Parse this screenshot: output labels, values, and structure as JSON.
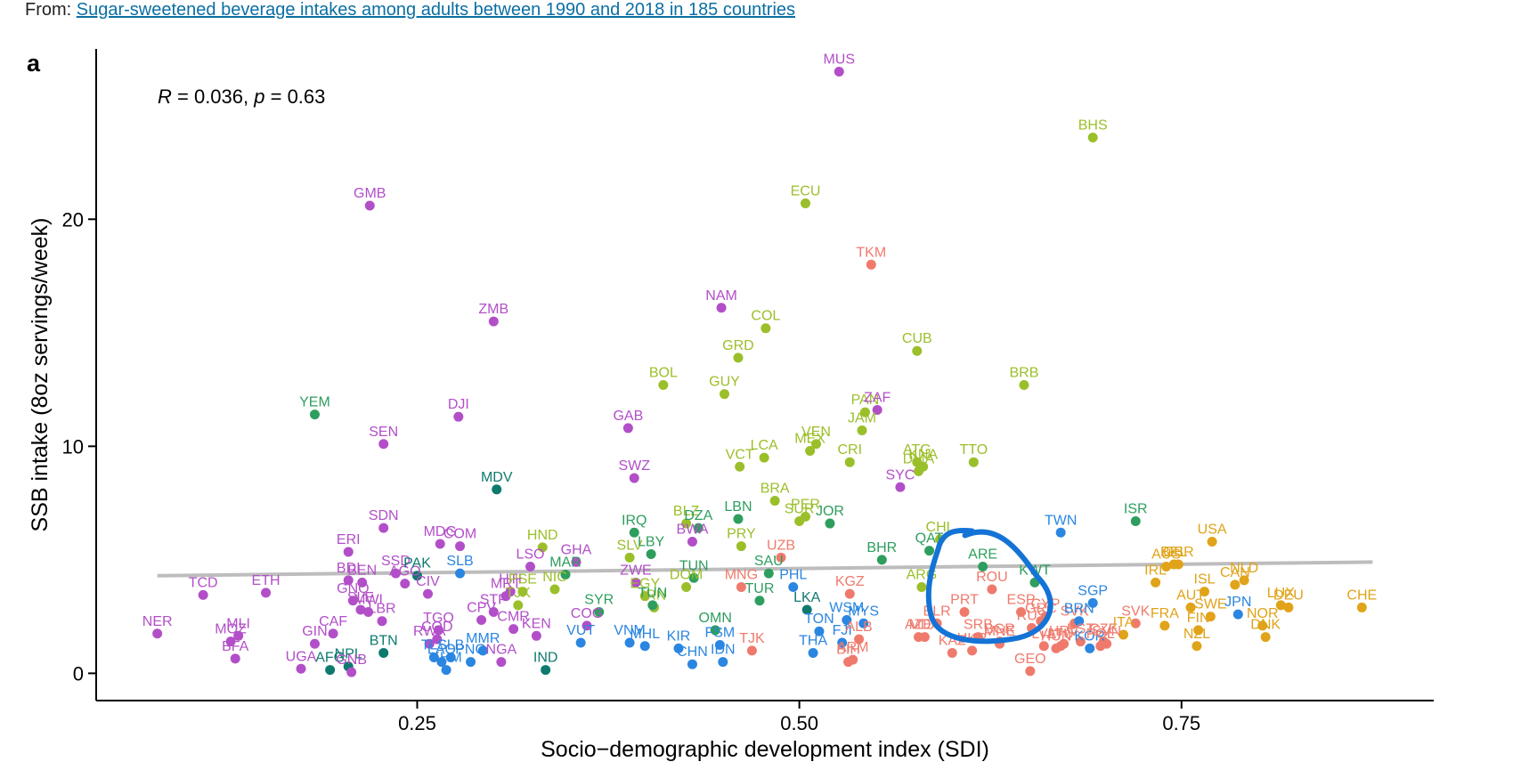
{
  "source": {
    "prefix": "From: ",
    "link_text": "Sugar-sweetened beverage intakes among adults between 1990 and 2018 in 185 countries"
  },
  "colors": {
    "purple": "#b24fc8",
    "green": "#9bbf2a",
    "seagreen": "#2e9e5e",
    "teal": "#0e7a6e",
    "blue": "#2a86e0",
    "salmon": "#ef7a6c",
    "gold": "#e0a319",
    "trend": "#bdbdbd",
    "annotation": "#1473d6"
  },
  "chart_data": {
    "type": "scatter",
    "panel_tag": "a",
    "stats_text": {
      "r_symbol": "R",
      "r_value": " = 0.036, ",
      "p_symbol": "p",
      "p_value": " = 0.63"
    },
    "xlabel": "Socio−demographic development index (SDI)",
    "ylabel": "SSB intake (8oz servings/week)",
    "xlim": [
      0.04,
      0.915
    ],
    "ylim": [
      -1.2,
      27.5
    ],
    "xticks": [
      0.25,
      0.5,
      0.75
    ],
    "xtick_labels": [
      "0.25",
      "0.50",
      "0.75"
    ],
    "yticks": [
      0,
      10,
      20
    ],
    "ytick_labels": [
      "0",
      "10",
      "20"
    ],
    "trendline": {
      "x": [
        0.08,
        0.875
      ],
      "y": [
        4.3,
        4.9
      ]
    },
    "annotation": {
      "shape": "hand-drawn circle",
      "around": "ARE"
    },
    "points": [
      {
        "l": "NER",
        "x": 0.08,
        "y": 1.75,
        "c": "purple"
      },
      {
        "l": "TCD",
        "x": 0.11,
        "y": 3.45,
        "c": "purple"
      },
      {
        "l": "MOZ",
        "x": 0.128,
        "y": 1.4,
        "c": "purple"
      },
      {
        "l": "MLI",
        "x": 0.133,
        "y": 1.65,
        "c": "purple"
      },
      {
        "l": "BFA",
        "x": 0.131,
        "y": 0.65,
        "c": "purple"
      },
      {
        "l": "ETH",
        "x": 0.151,
        "y": 3.55,
        "c": "purple"
      },
      {
        "l": "UGA",
        "x": 0.174,
        "y": 0.2,
        "c": "purple"
      },
      {
        "l": "YEM",
        "x": 0.183,
        "y": 11.4,
        "c": "seagreen"
      },
      {
        "l": "GIN",
        "x": 0.183,
        "y": 1.3,
        "c": "purple"
      },
      {
        "l": "AFG",
        "x": 0.193,
        "y": 0.15,
        "c": "teal"
      },
      {
        "l": "CAF",
        "x": 0.195,
        "y": 1.75,
        "c": "purple"
      },
      {
        "l": "NPL",
        "x": 0.205,
        "y": 0.3,
        "c": "teal"
      },
      {
        "l": "GNB",
        "x": 0.207,
        "y": 0.05,
        "c": "purple"
      },
      {
        "l": "ERI",
        "x": 0.205,
        "y": 5.35,
        "c": "purple"
      },
      {
        "l": "BDI",
        "x": 0.205,
        "y": 4.1,
        "c": "purple"
      },
      {
        "l": "BEN",
        "x": 0.214,
        "y": 4.0,
        "c": "purple"
      },
      {
        "l": "GNQ",
        "x": 0.208,
        "y": 3.2,
        "c": "purple"
      },
      {
        "l": "SLE",
        "x": 0.213,
        "y": 2.8,
        "c": "purple"
      },
      {
        "l": "MWI",
        "x": 0.218,
        "y": 2.7,
        "c": "purple"
      },
      {
        "l": "GMB",
        "x": 0.219,
        "y": 20.6,
        "c": "purple"
      },
      {
        "l": "LBR",
        "x": 0.227,
        "y": 2.3,
        "c": "purple"
      },
      {
        "l": "SEN",
        "x": 0.228,
        "y": 10.1,
        "c": "purple"
      },
      {
        "l": "SDN",
        "x": 0.228,
        "y": 6.4,
        "c": "purple"
      },
      {
        "l": "BTN",
        "x": 0.228,
        "y": 0.9,
        "c": "teal"
      },
      {
        "l": "SSD",
        "x": 0.236,
        "y": 4.4,
        "c": "purple"
      },
      {
        "l": "AGO",
        "x": 0.242,
        "y": 3.95,
        "c": "purple"
      },
      {
        "l": "PAK",
        "x": 0.25,
        "y": 4.3,
        "c": "teal"
      },
      {
        "l": "CIV",
        "x": 0.257,
        "y": 3.5,
        "c": "purple"
      },
      {
        "l": "TGO",
        "x": 0.264,
        "y": 1.9,
        "c": "purple"
      },
      {
        "l": "COD",
        "x": 0.263,
        "y": 1.5,
        "c": "purple"
      },
      {
        "l": "RWA",
        "x": 0.258,
        "y": 1.3,
        "c": "purple"
      },
      {
        "l": "TLS",
        "x": 0.261,
        "y": 0.7,
        "c": "blue"
      },
      {
        "l": "LAO",
        "x": 0.266,
        "y": 0.5,
        "c": "blue"
      },
      {
        "l": "SLB",
        "x": 0.272,
        "y": 0.7,
        "c": "blue"
      },
      {
        "l": "KHM",
        "x": 0.269,
        "y": 0.15,
        "c": "blue"
      },
      {
        "l": "MDG",
        "x": 0.265,
        "y": 5.7,
        "c": "purple"
      },
      {
        "l": "COM",
        "x": 0.278,
        "y": 5.6,
        "c": "purple"
      },
      {
        "l": "SLB",
        "x": 0.278,
        "y": 4.4,
        "c": "blue"
      },
      {
        "l": "DJI",
        "x": 0.277,
        "y": 11.3,
        "c": "purple"
      },
      {
        "l": "PNG",
        "x": 0.285,
        "y": 0.5,
        "c": "blue"
      },
      {
        "l": "MMR",
        "x": 0.293,
        "y": 1.0,
        "c": "blue"
      },
      {
        "l": "CPV",
        "x": 0.292,
        "y": 2.35,
        "c": "purple"
      },
      {
        "l": "STP",
        "x": 0.3,
        "y": 2.7,
        "c": "purple"
      },
      {
        "l": "ZMB",
        "x": 0.3,
        "y": 15.5,
        "c": "purple"
      },
      {
        "l": "MDV",
        "x": 0.302,
        "y": 8.1,
        "c": "teal"
      },
      {
        "l": "NGA",
        "x": 0.305,
        "y": 0.5,
        "c": "purple"
      },
      {
        "l": "CMR",
        "x": 0.313,
        "y": 1.95,
        "c": "purple"
      },
      {
        "l": "MRT",
        "x": 0.308,
        "y": 3.4,
        "c": "purple"
      },
      {
        "l": "HTI",
        "x": 0.311,
        "y": 3.6,
        "c": "purple"
      },
      {
        "l": "PSE",
        "x": 0.319,
        "y": 3.6,
        "c": "green"
      },
      {
        "l": "TJK",
        "x": 0.316,
        "y": 3.0,
        "c": "green"
      },
      {
        "l": "KEN",
        "x": 0.328,
        "y": 1.65,
        "c": "purple"
      },
      {
        "l": "LSO",
        "x": 0.324,
        "y": 4.7,
        "c": "purple"
      },
      {
        "l": "HND",
        "x": 0.332,
        "y": 5.55,
        "c": "green"
      },
      {
        "l": "IND",
        "x": 0.334,
        "y": 0.15,
        "c": "teal"
      },
      {
        "l": "NIC",
        "x": 0.34,
        "y": 3.7,
        "c": "green"
      },
      {
        "l": "MAR",
        "x": 0.347,
        "y": 4.35,
        "c": "seagreen"
      },
      {
        "l": "GHA",
        "x": 0.354,
        "y": 4.9,
        "c": "purple"
      },
      {
        "l": "VUT",
        "x": 0.357,
        "y": 1.35,
        "c": "blue"
      },
      {
        "l": "COG",
        "x": 0.361,
        "y": 2.1,
        "c": "purple"
      },
      {
        "l": "SYR",
        "x": 0.369,
        "y": 2.7,
        "c": "seagreen"
      },
      {
        "l": "VNM",
        "x": 0.389,
        "y": 1.35,
        "c": "blue"
      },
      {
        "l": "MHL",
        "x": 0.399,
        "y": 1.2,
        "c": "blue"
      },
      {
        "l": "GAB",
        "x": 0.388,
        "y": 10.8,
        "c": "purple"
      },
      {
        "l": "SWZ",
        "x": 0.392,
        "y": 8.6,
        "c": "purple"
      },
      {
        "l": "IRQ",
        "x": 0.392,
        "y": 6.2,
        "c": "seagreen"
      },
      {
        "l": "SLV",
        "x": 0.389,
        "y": 5.1,
        "c": "green"
      },
      {
        "l": "ZWE",
        "x": 0.393,
        "y": 4.0,
        "c": "purple"
      },
      {
        "l": "EGY",
        "x": 0.399,
        "y": 3.4,
        "c": "green"
      },
      {
        "l": "IRN",
        "x": 0.405,
        "y": 2.9,
        "c": "green"
      },
      {
        "l": "TUN",
        "x": 0.404,
        "y": 3.0,
        "c": "seagreen"
      },
      {
        "l": "LBY",
        "x": 0.403,
        "y": 5.25,
        "c": "seagreen"
      },
      {
        "l": "BOL",
        "x": 0.411,
        "y": 12.7,
        "c": "green"
      },
      {
        "l": "KIR",
        "x": 0.421,
        "y": 1.1,
        "c": "blue"
      },
      {
        "l": "CHN",
        "x": 0.43,
        "y": 0.4,
        "c": "blue"
      },
      {
        "l": "DOM",
        "x": 0.426,
        "y": 3.8,
        "c": "green"
      },
      {
        "l": "TUN",
        "x": 0.431,
        "y": 4.2,
        "c": "seagreen"
      },
      {
        "l": "BLZ",
        "x": 0.426,
        "y": 6.6,
        "c": "green"
      },
      {
        "l": "DZA",
        "x": 0.434,
        "y": 6.4,
        "c": "seagreen"
      },
      {
        "l": "BWA",
        "x": 0.43,
        "y": 5.8,
        "c": "purple"
      },
      {
        "l": "OMN",
        "x": 0.445,
        "y": 1.9,
        "c": "seagreen"
      },
      {
        "l": "FSM",
        "x": 0.448,
        "y": 1.25,
        "c": "blue"
      },
      {
        "l": "IDN",
        "x": 0.45,
        "y": 0.5,
        "c": "blue"
      },
      {
        "l": "NAM",
        "x": 0.449,
        "y": 16.1,
        "c": "purple"
      },
      {
        "l": "GUY",
        "x": 0.451,
        "y": 12.3,
        "c": "green"
      },
      {
        "l": "GRD",
        "x": 0.46,
        "y": 13.9,
        "c": "green"
      },
      {
        "l": "MNG",
        "x": 0.462,
        "y": 3.8,
        "c": "salmon"
      },
      {
        "l": "TJK",
        "x": 0.469,
        "y": 1.0,
        "c": "salmon"
      },
      {
        "l": "LBN",
        "x": 0.46,
        "y": 6.8,
        "c": "seagreen"
      },
      {
        "l": "PRY",
        "x": 0.462,
        "y": 5.6,
        "c": "green"
      },
      {
        "l": "VCT",
        "x": 0.461,
        "y": 9.1,
        "c": "green"
      },
      {
        "l": "TUR",
        "x": 0.474,
        "y": 3.2,
        "c": "seagreen"
      },
      {
        "l": "SAU",
        "x": 0.48,
        "y": 4.4,
        "c": "seagreen"
      },
      {
        "l": "COL",
        "x": 0.478,
        "y": 15.2,
        "c": "green"
      },
      {
        "l": "LCA",
        "x": 0.477,
        "y": 9.5,
        "c": "green"
      },
      {
        "l": "BRA",
        "x": 0.484,
        "y": 7.6,
        "c": "green"
      },
      {
        "l": "UZB",
        "x": 0.488,
        "y": 5.1,
        "c": "salmon"
      },
      {
        "l": "PHL",
        "x": 0.496,
        "y": 3.8,
        "c": "blue"
      },
      {
        "l": "SUR",
        "x": 0.5,
        "y": 6.7,
        "c": "green"
      },
      {
        "l": "PER",
        "x": 0.504,
        "y": 6.9,
        "c": "green"
      },
      {
        "l": "LKA",
        "x": 0.505,
        "y": 2.8,
        "c": "teal"
      },
      {
        "l": "ECU",
        "x": 0.504,
        "y": 20.7,
        "c": "green"
      },
      {
        "l": "MEX",
        "x": 0.507,
        "y": 9.8,
        "c": "green"
      },
      {
        "l": "VEN",
        "x": 0.511,
        "y": 10.1,
        "c": "green"
      },
      {
        "l": "THA",
        "x": 0.509,
        "y": 0.9,
        "c": "blue"
      },
      {
        "l": "TON",
        "x": 0.513,
        "y": 1.85,
        "c": "blue"
      },
      {
        "l": "JOR",
        "x": 0.52,
        "y": 6.6,
        "c": "seagreen"
      },
      {
        "l": "MUS",
        "x": 0.526,
        "y": 26.5,
        "c": "purple"
      },
      {
        "l": "FJI",
        "x": 0.528,
        "y": 1.35,
        "c": "blue"
      },
      {
        "l": "WSM",
        "x": 0.531,
        "y": 2.35,
        "c": "blue"
      },
      {
        "l": "MYS",
        "x": 0.542,
        "y": 2.2,
        "c": "blue"
      },
      {
        "l": "KGZ",
        "x": 0.533,
        "y": 3.5,
        "c": "salmon"
      },
      {
        "l": "ALB",
        "x": 0.539,
        "y": 1.5,
        "c": "salmon"
      },
      {
        "l": "ARM",
        "x": 0.535,
        "y": 0.6,
        "c": "salmon"
      },
      {
        "l": "BIH",
        "x": 0.532,
        "y": 0.5,
        "c": "salmon"
      },
      {
        "l": "CRI",
        "x": 0.533,
        "y": 9.3,
        "c": "green"
      },
      {
        "l": "JAM",
        "x": 0.541,
        "y": 10.7,
        "c": "green"
      },
      {
        "l": "PAN",
        "x": 0.543,
        "y": 11.5,
        "c": "green"
      },
      {
        "l": "ZAF",
        "x": 0.551,
        "y": 11.6,
        "c": "purple"
      },
      {
        "l": "TKM",
        "x": 0.547,
        "y": 18.0,
        "c": "salmon"
      },
      {
        "l": "BHR",
        "x": 0.554,
        "y": 5.0,
        "c": "seagreen"
      },
      {
        "l": "SYC",
        "x": 0.566,
        "y": 8.2,
        "c": "purple"
      },
      {
        "l": "CUB",
        "x": 0.577,
        "y": 14.2,
        "c": "green"
      },
      {
        "l": "ATG",
        "x": 0.577,
        "y": 9.3,
        "c": "green"
      },
      {
        "l": "KNA",
        "x": 0.581,
        "y": 9.1,
        "c": "green"
      },
      {
        "l": "DMA",
        "x": 0.578,
        "y": 8.9,
        "c": "green"
      },
      {
        "l": "ARG",
        "x": 0.58,
        "y": 3.8,
        "c": "green"
      },
      {
        "l": "QAT",
        "x": 0.585,
        "y": 5.4,
        "c": "seagreen"
      },
      {
        "l": "CHL",
        "x": 0.592,
        "y": 5.9,
        "c": "green"
      },
      {
        "l": "MDA",
        "x": 0.582,
        "y": 1.6,
        "c": "salmon"
      },
      {
        "l": "BLR",
        "x": 0.59,
        "y": 2.2,
        "c": "salmon"
      },
      {
        "l": "AZE",
        "x": 0.578,
        "y": 1.6,
        "c": "salmon"
      },
      {
        "l": "KAZ",
        "x": 0.6,
        "y": 0.9,
        "c": "salmon"
      },
      {
        "l": "PRT",
        "x": 0.608,
        "y": 2.7,
        "c": "salmon"
      },
      {
        "l": "TTO",
        "x": 0.614,
        "y": 9.3,
        "c": "green"
      },
      {
        "l": "ROU",
        "x": 0.626,
        "y": 3.7,
        "c": "salmon"
      },
      {
        "l": "SRB",
        "x": 0.617,
        "y": 1.6,
        "c": "salmon"
      },
      {
        "l": "UKR",
        "x": 0.613,
        "y": 1.0,
        "c": "salmon"
      },
      {
        "l": "BGR",
        "x": 0.631,
        "y": 1.4,
        "c": "salmon"
      },
      {
        "l": "MNE",
        "x": 0.631,
        "y": 1.3,
        "c": "salmon"
      },
      {
        "l": "ARE",
        "x": 0.62,
        "y": 4.7,
        "c": "seagreen"
      },
      {
        "l": "ESP",
        "x": 0.645,
        "y": 2.7,
        "c": "salmon"
      },
      {
        "l": "RUS",
        "x": 0.652,
        "y": 2.0,
        "c": "salmon"
      },
      {
        "l": "GEO",
        "x": 0.651,
        "y": 0.1,
        "c": "salmon"
      },
      {
        "l": "BRB",
        "x": 0.647,
        "y": 12.7,
        "c": "green"
      },
      {
        "l": "KWT",
        "x": 0.654,
        "y": 4.0,
        "c": "seagreen"
      },
      {
        "l": "CYP",
        "x": 0.661,
        "y": 2.5,
        "c": "salmon"
      },
      {
        "l": "GRC",
        "x": 0.658,
        "y": 2.3,
        "c": "salmon"
      },
      {
        "l": "LVA",
        "x": 0.66,
        "y": 1.2,
        "c": "salmon"
      },
      {
        "l": "HUN",
        "x": 0.668,
        "y": 1.1,
        "c": "salmon"
      },
      {
        "l": "LTU",
        "x": 0.671,
        "y": 1.2,
        "c": "salmon"
      },
      {
        "l": "HRV",
        "x": 0.673,
        "y": 1.3,
        "c": "salmon"
      },
      {
        "l": "SVK",
        "x": 0.68,
        "y": 2.2,
        "c": "salmon"
      },
      {
        "l": "EST",
        "x": 0.684,
        "y": 1.4,
        "c": "salmon"
      },
      {
        "l": "TWN",
        "x": 0.671,
        "y": 6.2,
        "c": "blue"
      },
      {
        "l": "BRN",
        "x": 0.683,
        "y": 2.3,
        "c": "blue"
      },
      {
        "l": "SGP",
        "x": 0.692,
        "y": 3.1,
        "c": "blue"
      },
      {
        "l": "KOR",
        "x": 0.69,
        "y": 1.1,
        "c": "blue"
      },
      {
        "l": "CZE",
        "x": 0.699,
        "y": 1.4,
        "c": "salmon"
      },
      {
        "l": "POL",
        "x": 0.697,
        "y": 1.2,
        "c": "salmon"
      },
      {
        "l": "SVN",
        "x": 0.701,
        "y": 1.3,
        "c": "salmon"
      },
      {
        "l": "BHS",
        "x": 0.692,
        "y": 23.6,
        "c": "green"
      },
      {
        "l": "ISR",
        "x": 0.72,
        "y": 6.7,
        "c": "seagreen"
      },
      {
        "l": "ITA",
        "x": 0.712,
        "y": 1.7,
        "c": "gold"
      },
      {
        "l": "SVK",
        "x": 0.72,
        "y": 2.2,
        "c": "salmon"
      },
      {
        "l": "IRL",
        "x": 0.733,
        "y": 4.0,
        "c": "gold"
      },
      {
        "l": "FRA",
        "x": 0.739,
        "y": 2.1,
        "c": "gold"
      },
      {
        "l": "AUS",
        "x": 0.74,
        "y": 4.7,
        "c": "gold"
      },
      {
        "l": "BEL",
        "x": 0.745,
        "y": 4.8,
        "c": "gold"
      },
      {
        "l": "GBR",
        "x": 0.748,
        "y": 4.8,
        "c": "gold"
      },
      {
        "l": "AUT",
        "x": 0.756,
        "y": 2.9,
        "c": "gold"
      },
      {
        "l": "FIN",
        "x": 0.761,
        "y": 1.9,
        "c": "gold"
      },
      {
        "l": "NZL",
        "x": 0.76,
        "y": 1.2,
        "c": "gold"
      },
      {
        "l": "ISL",
        "x": 0.765,
        "y": 3.6,
        "c": "gold"
      },
      {
        "l": "SWE",
        "x": 0.769,
        "y": 2.5,
        "c": "gold"
      },
      {
        "l": "USA",
        "x": 0.77,
        "y": 5.8,
        "c": "gold"
      },
      {
        "l": "CAN",
        "x": 0.785,
        "y": 3.9,
        "c": "gold"
      },
      {
        "l": "NLD",
        "x": 0.791,
        "y": 4.1,
        "c": "gold"
      },
      {
        "l": "JPN",
        "x": 0.787,
        "y": 2.6,
        "c": "blue"
      },
      {
        "l": "NOR",
        "x": 0.803,
        "y": 2.1,
        "c": "gold"
      },
      {
        "l": "DNK",
        "x": 0.805,
        "y": 1.6,
        "c": "gold"
      },
      {
        "l": "LUX",
        "x": 0.815,
        "y": 3.0,
        "c": "gold"
      },
      {
        "l": "DEU",
        "x": 0.82,
        "y": 2.9,
        "c": "gold"
      },
      {
        "l": "CHE",
        "x": 0.868,
        "y": 2.9,
        "c": "gold"
      }
    ]
  }
}
